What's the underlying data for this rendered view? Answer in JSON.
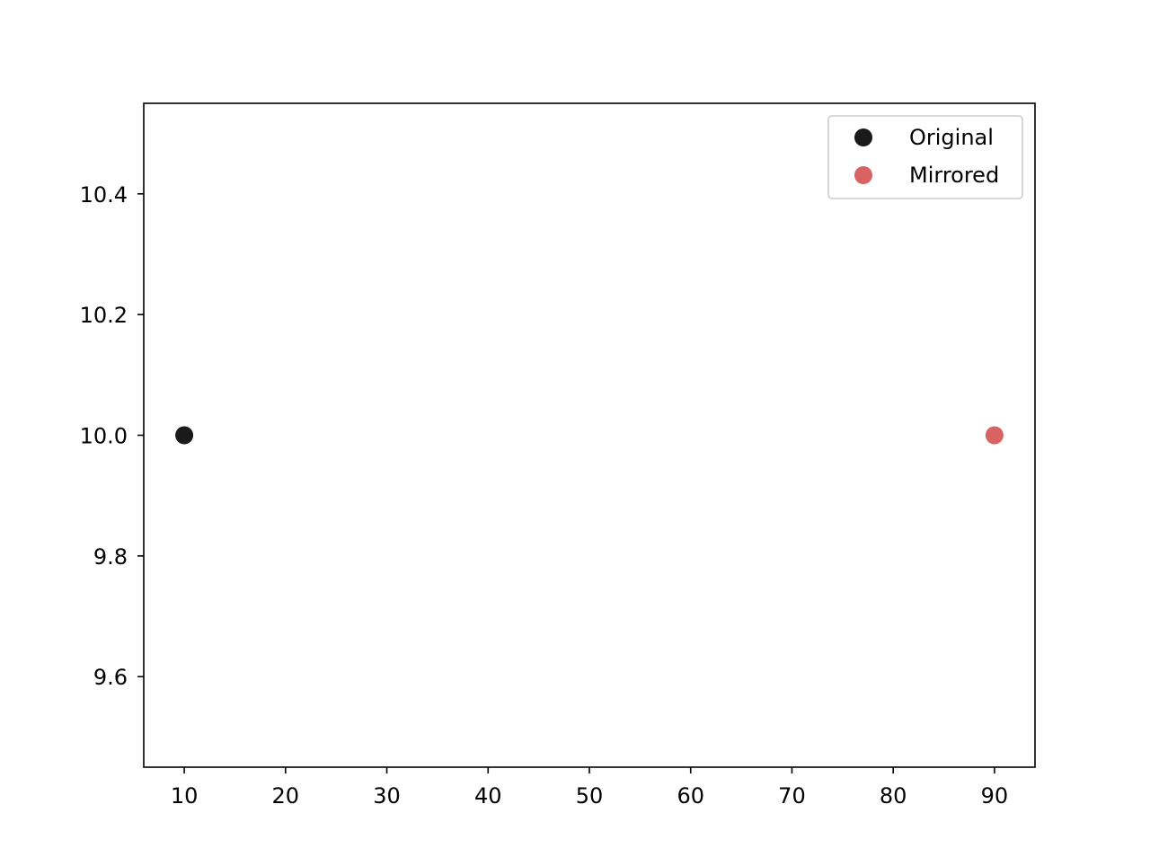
{
  "chart_data": {
    "type": "scatter",
    "title": "",
    "xlabel": "",
    "ylabel": "",
    "xlim": [
      6,
      94
    ],
    "ylim": [
      9.45,
      10.55
    ],
    "xticks": [
      10,
      20,
      30,
      40,
      50,
      60,
      70,
      80,
      90
    ],
    "xtick_labels": [
      "10",
      "20",
      "30",
      "40",
      "50",
      "60",
      "70",
      "80",
      "90"
    ],
    "yticks": [
      9.6,
      9.8,
      10.0,
      10.2,
      10.4
    ],
    "ytick_labels": [
      "9.6",
      "9.8",
      "10.0",
      "10.2",
      "10.4"
    ],
    "grid": false,
    "legend_position": "top-right",
    "series": [
      {
        "name": "Original",
        "color": "#1a1a1a",
        "points": [
          {
            "x": 10,
            "y": 10.0
          }
        ]
      },
      {
        "name": "Mirrored",
        "color": "#d96262",
        "points": [
          {
            "x": 90,
            "y": 10.0
          }
        ]
      }
    ]
  }
}
